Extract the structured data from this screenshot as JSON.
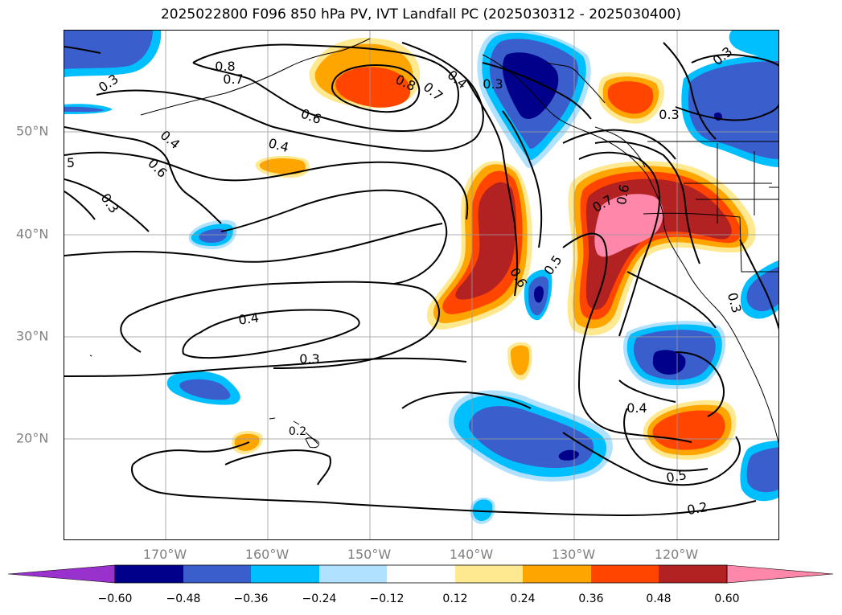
{
  "title": "2025022800 F096 850 hPa PV, IVT Landfall PC (2025030312 - 2025030400)",
  "lon_ticks": [
    "170°W",
    "160°W",
    "150°W",
    "140°W",
    "130°W",
    "120°W"
  ],
  "lat_ticks": [
    "50°N",
    "40°N",
    "30°N",
    "20°N"
  ],
  "colorbar": {
    "levels": [
      "−0.60",
      "−0.48",
      "−0.36",
      "−0.24",
      "−0.12",
      "0.12",
      "0.24",
      "0.36",
      "0.48",
      "0.60"
    ],
    "colors": [
      "#9932cc",
      "#00008b",
      "#3a5fcd",
      "#00bfff",
      "#b0e2ff",
      "#ffffff",
      "#ffe990",
      "#ffa500",
      "#ff4500",
      "#b22222",
      "#ff88aa"
    ]
  },
  "contour_labels": [
    "0.8",
    "0.7",
    "0.3",
    "0.8",
    "0.7",
    "0.4",
    "0.3",
    "0.3",
    "0.3",
    "0.6",
    "0.4",
    "0.4",
    "0.6",
    "5",
    "0.3",
    "0.7",
    "0.6",
    "0.6",
    "0.5",
    "0.4",
    "0.3",
    "0.2",
    "0.4",
    "0.5",
    "0.2",
    "0.3"
  ]
}
